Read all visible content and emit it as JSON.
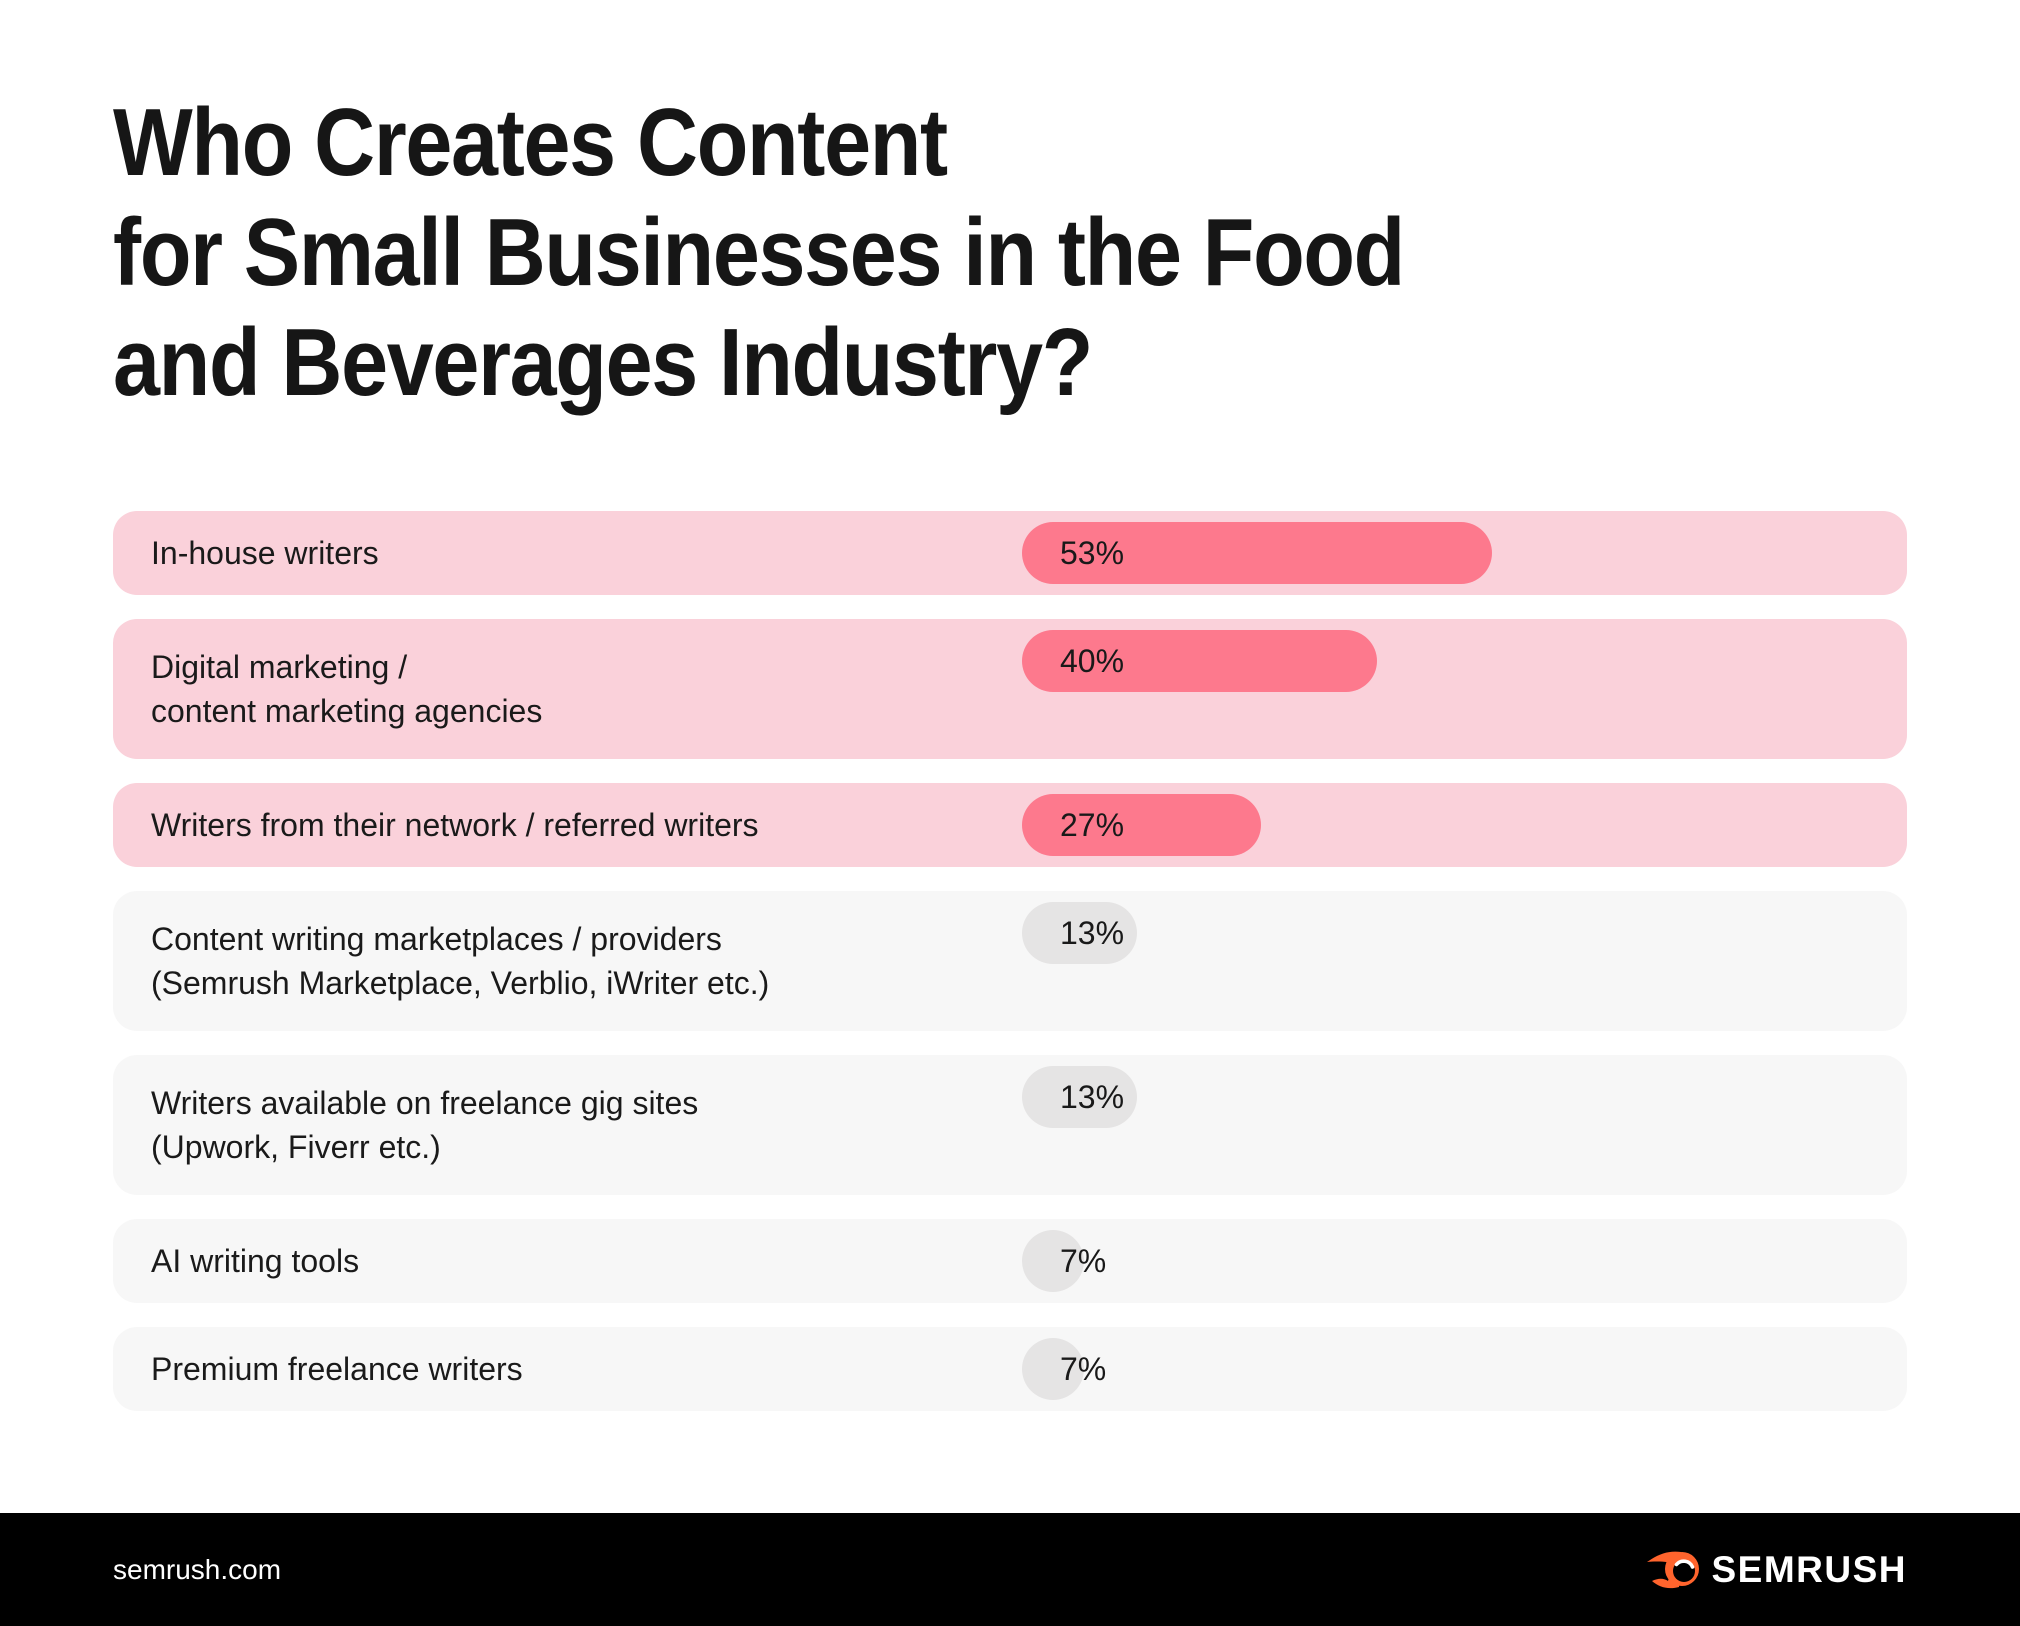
{
  "title": {
    "line1": "Who Creates Content",
    "line2": "for Small Businesses in the Food",
    "line3": "and Beverages Industry?"
  },
  "chart_data": {
    "type": "bar",
    "orientation": "horizontal",
    "title": "Who Creates Content for Small Businesses in the Food and Beverages Industry?",
    "unit": "percent",
    "xlim": [
      0,
      100
    ],
    "grid": false,
    "legend": false,
    "categories": [
      "In-house writers",
      "Digital marketing / content marketing agencies",
      "Writers from their network / referred writers",
      "Content writing marketplaces / providers (Semrush Marketplace, Verblio, iWriter etc.)",
      "Writers available on freelance gig sites (Upwork, Fiverr etc.)",
      "AI writing tools",
      "Premium freelance writers"
    ],
    "values": [
      53,
      40,
      27,
      13,
      13,
      7,
      7
    ],
    "value_labels": [
      "53%",
      "40%",
      "27%",
      "13%",
      "13%",
      "7%",
      "7%"
    ],
    "highlighted": [
      true,
      true,
      true,
      false,
      false,
      false,
      false
    ]
  },
  "rows": [
    {
      "label_lines": [
        "In-house writers"
      ],
      "value": 53,
      "value_label": "53%",
      "highlighted": true
    },
    {
      "label_lines": [
        "Digital marketing /",
        "content marketing agencies"
      ],
      "value": 40,
      "value_label": "40%",
      "highlighted": true
    },
    {
      "label_lines": [
        "Writers from their network / referred writers"
      ],
      "value": 27,
      "value_label": "27%",
      "highlighted": true
    },
    {
      "label_lines": [
        "Content writing marketplaces / providers",
        "(Semrush Marketplace, Verblio, iWriter etc.)"
      ],
      "value": 13,
      "value_label": "13%",
      "highlighted": false
    },
    {
      "label_lines": [
        "Writers available on freelance gig sites",
        "(Upwork, Fiverr etc.)"
      ],
      "value": 13,
      "value_label": "13%",
      "highlighted": false
    },
    {
      "label_lines": [
        "AI writing tools"
      ],
      "value": 7,
      "value_label": "7%",
      "highlighted": false
    },
    {
      "label_lines": [
        "Premium freelance writers"
      ],
      "value": 7,
      "value_label": "7%",
      "highlighted": false
    }
  ],
  "footer": {
    "site": "semrush.com",
    "brand": "SEMRUSH"
  },
  "colors": {
    "row_pink": "#FAD1DA",
    "bar_pink": "#FD798D",
    "row_gray": "#F7F7F7",
    "bar_gray": "#E5E4E4",
    "brand_orange": "#FF642D",
    "footer_bg": "#000000",
    "footer_text": "#FFFFFF",
    "text_dark": "#161616"
  }
}
